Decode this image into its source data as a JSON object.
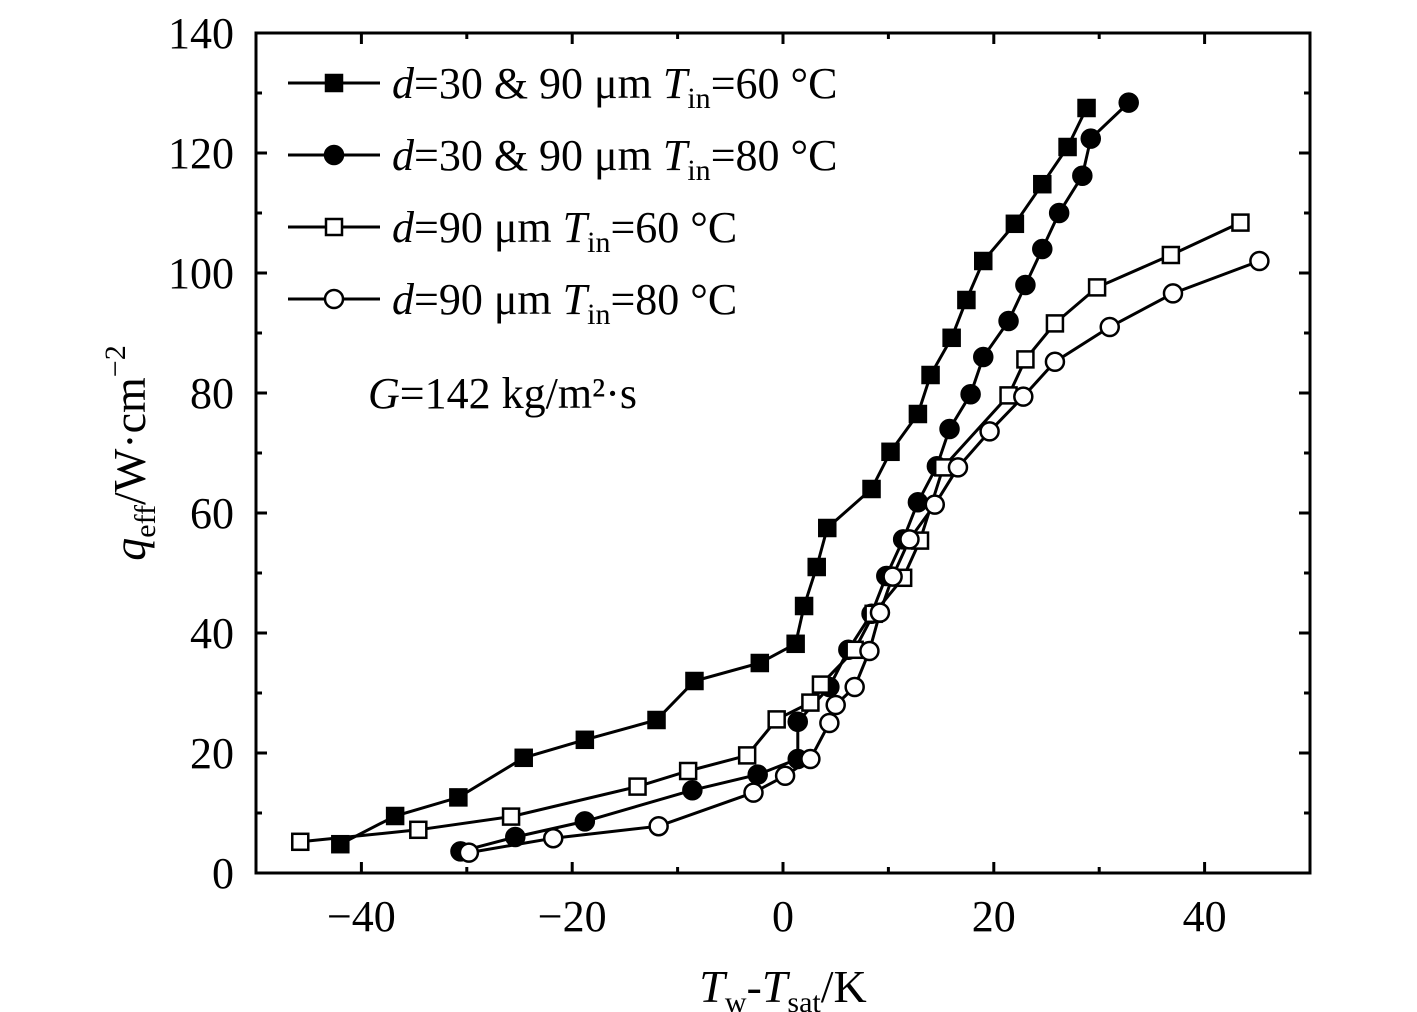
{
  "chart_data": {
    "type": "line",
    "xlabel": {
      "main": "T",
      "sub_w": "w",
      "dash": "-",
      "main2": "T",
      "sub_sat": "sat",
      "unit": "/K"
    },
    "ylabel": {
      "main": "q",
      "sub": "eff",
      "unit": "/W·cm",
      "sup": "−2"
    },
    "xlim": [
      -50,
      50
    ],
    "ylim": [
      0,
      140
    ],
    "xticks": [
      -40,
      -20,
      0,
      20,
      40
    ],
    "xtick_labels": [
      "−40",
      "−20",
      "0",
      "20",
      "40"
    ],
    "yticks": [
      0,
      20,
      40,
      60,
      80,
      100,
      120,
      140
    ],
    "ytick_labels": [
      "0",
      "20",
      "40",
      "60",
      "80",
      "100",
      "120",
      "140"
    ],
    "annotation": {
      "var": "G",
      "text": "=142 kg/m²·s"
    },
    "legend_position": "top-left",
    "series": [
      {
        "name": "d=30 & 90 μm Tin=60 °C",
        "legend": {
          "var": "d",
          "text": "=30 & 90 μm ",
          "tvar": "T",
          "sub": "in",
          "tail": "=60 °C"
        },
        "marker": "square-filled",
        "x": [
          -42.0,
          -36.8,
          -30.8,
          -24.6,
          -18.8,
          -12.0,
          -8.4,
          -2.2,
          1.2,
          2.0,
          3.2,
          4.2,
          8.4,
          10.2,
          12.8,
          14.0,
          16.0,
          17.4,
          19.0,
          22.0,
          24.6,
          27.0,
          28.8
        ],
        "y": [
          4.8,
          9.5,
          12.6,
          19.2,
          22.2,
          25.5,
          32.0,
          35.0,
          38.2,
          44.5,
          51.0,
          57.5,
          64.0,
          70.2,
          76.5,
          83.0,
          89.2,
          95.5,
          102.0,
          108.2,
          114.8,
          121.0,
          127.5
        ]
      },
      {
        "name": "d=30 & 90 μm Tin=80 °C",
        "legend": {
          "var": "d",
          "text": "=30 & 90 μm ",
          "tvar": "T",
          "sub": "in",
          "tail": "=80 °C"
        },
        "marker": "circle-filled",
        "x": [
          -30.6,
          -25.4,
          -18.8,
          -8.6,
          -2.4,
          1.4,
          1.4,
          4.4,
          6.2,
          8.4,
          9.8,
          11.4,
          12.8,
          14.6,
          15.8,
          17.8,
          19.0,
          21.4,
          23.0,
          24.6,
          26.2,
          28.4,
          29.2,
          32.8
        ],
        "y": [
          3.6,
          6.0,
          8.6,
          13.8,
          16.4,
          19.0,
          25.2,
          31.0,
          37.2,
          43.2,
          49.5,
          55.6,
          61.8,
          67.8,
          74.0,
          79.8,
          86.0,
          92.0,
          98.0,
          104.0,
          110.0,
          116.2,
          122.4,
          128.4
        ]
      },
      {
        "name": "d=90 μm Tin=60 °C",
        "legend": {
          "var": "d",
          "text": "=90 μm ",
          "tvar": "T",
          "sub": "in",
          "tail": "=60 °C"
        },
        "marker": "square-open",
        "x": [
          -45.8,
          -34.6,
          -25.8,
          -13.8,
          -9.0,
          -3.4,
          -0.6,
          2.6,
          3.6,
          6.8,
          8.6,
          11.4,
          13.0,
          15.2,
          21.4,
          23.0,
          25.8,
          29.8,
          36.8,
          43.4
        ],
        "y": [
          5.2,
          7.2,
          9.4,
          14.4,
          17.0,
          19.6,
          25.6,
          28.4,
          31.4,
          37.2,
          43.2,
          49.2,
          55.4,
          67.6,
          79.6,
          85.6,
          91.6,
          97.6,
          103.0,
          108.4
        ]
      },
      {
        "name": "d=90 μm Tin=80 °C",
        "legend": {
          "var": "d",
          "text": "=90 μm ",
          "tvar": "T",
          "sub": "in",
          "tail": "=80 °C"
        },
        "marker": "circle-open",
        "x": [
          -29.8,
          -21.8,
          -11.8,
          -2.8,
          0.2,
          2.6,
          4.4,
          5.0,
          6.8,
          8.2,
          9.2,
          10.4,
          12.0,
          14.4,
          16.6,
          19.6,
          22.8,
          25.8,
          31.0,
          37.0,
          45.2
        ],
        "y": [
          3.4,
          5.8,
          7.8,
          13.4,
          16.2,
          19.0,
          25.0,
          28.0,
          31.0,
          37.0,
          43.4,
          49.4,
          55.6,
          61.4,
          67.6,
          73.6,
          79.4,
          85.2,
          91.0,
          96.6,
          102.0
        ]
      }
    ]
  }
}
